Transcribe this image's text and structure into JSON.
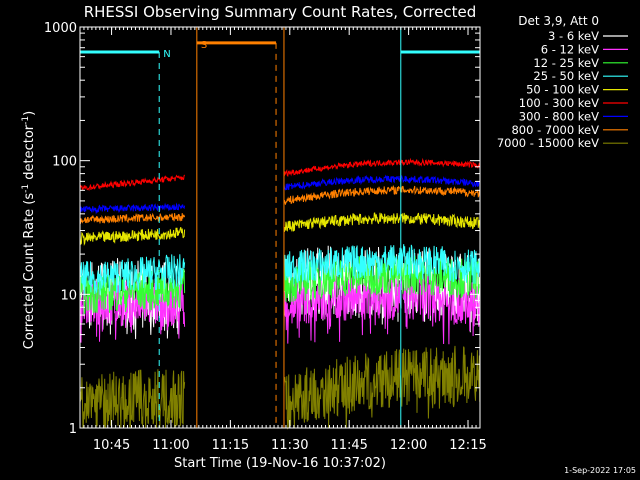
{
  "chart_data": {
    "type": "line",
    "title": "RHESSI Observing Summary Count Rates, Corrected",
    "xlabel": "Start Time (19-Nov-16 10:37:02)",
    "ylabel_main": "Corrected Count Rate (s",
    "ylabel_sup1": "-1",
    "ylabel_mid": " detector",
    "ylabel_sup2": "-1",
    "ylabel_end": ")",
    "yscale": "log",
    "ylim": [
      1,
      1000
    ],
    "x_units": "minutes after 10:37:02",
    "xlim": [
      0,
      101
    ],
    "x_ticks": [
      {
        "x": 7.97,
        "label": "10:45"
      },
      {
        "x": 22.97,
        "label": "11:00"
      },
      {
        "x": 37.97,
        "label": "11:15"
      },
      {
        "x": 52.97,
        "label": "11:30"
      },
      {
        "x": 67.97,
        "label": "11:45"
      },
      {
        "x": 82.97,
        "label": "12:00"
      },
      {
        "x": 97.97,
        "label": "12:15"
      }
    ],
    "y_ticks": [
      {
        "y": 1,
        "label": "1"
      },
      {
        "y": 10,
        "label": "10"
      },
      {
        "y": 100,
        "label": "100"
      },
      {
        "y": 1000,
        "label": "1000"
      }
    ],
    "legend_header": "Det 3,9, Att 0",
    "legend_position": "right",
    "gap": [
      26.5,
      51.5
    ],
    "segments": [
      [
        0,
        26.5
      ],
      [
        51.5,
        101
      ]
    ],
    "series": [
      {
        "name": "3 - 6 keV",
        "color": "#ffffff",
        "levels": [
          [
            10.5,
            10
          ],
          [
            12,
            11
          ]
        ],
        "noise": 0.6,
        "spikes": true
      },
      {
        "name": "6 - 12 keV",
        "color": "#ff33ff",
        "levels": [
          [
            8.5,
            8.5
          ],
          [
            8.5,
            8.5
          ]
        ],
        "noise": 0.4,
        "spikes": true
      },
      {
        "name": "12 - 25 keV",
        "color": "#33ff33",
        "levels": [
          [
            10,
            11
          ],
          [
            12,
            13
          ]
        ],
        "noise": 0.35,
        "spikes": false
      },
      {
        "name": "25 - 50 keV",
        "color": "#33ffff",
        "levels": [
          [
            13,
            15
          ],
          [
            15.5,
            16
          ]
        ],
        "noise": 0.3,
        "spikes": false
      },
      {
        "name": "50 - 100 keV",
        "color": "#e6e600",
        "levels": [
          [
            26,
            29
          ],
          [
            32,
            34
          ]
        ],
        "noise": 0.1,
        "spikes": false
      },
      {
        "name": "100 - 300 keV",
        "color": "#ff0000",
        "levels": [
          [
            62,
            75
          ],
          [
            80,
            92
          ]
        ],
        "noise": 0.05,
        "spikes": false
      },
      {
        "name": "300 - 800 keV",
        "color": "#0000ff",
        "levels": [
          [
            43,
            45
          ],
          [
            63,
            67
          ]
        ],
        "noise": 0.06,
        "spikes": false
      },
      {
        "name": "800 - 7000 keV",
        "color": "#ff8000",
        "levels": [
          [
            36,
            38
          ],
          [
            50,
            57
          ]
        ],
        "noise": 0.07,
        "spikes": false
      },
      {
        "name": "7000 - 15000 keV",
        "color": "#808000",
        "levels": [
          [
            1.6,
            1.7
          ],
          [
            1.6,
            2.5
          ]
        ],
        "noise": 0.5,
        "spikes": true
      }
    ],
    "flags": [
      {
        "label": "N",
        "color": "#33ffff",
        "y": 650,
        "solid_x": [
          0,
          20
        ],
        "dash_x": 20,
        "label_x": 20
      },
      {
        "label": "",
        "color": "#33ffff",
        "y": 650,
        "solid_x": [
          81,
          101
        ],
        "dash_x": 101,
        "label_x": null
      },
      {
        "label": "S",
        "color": "#ff8000",
        "y": 760,
        "solid_x": [
          29.5,
          49.5
        ],
        "dash_x": 49.5,
        "label_x": 29.5
      }
    ],
    "vlines": [
      {
        "x": 0,
        "color": "#33ffff"
      },
      {
        "x": 29.5,
        "color": "#ff8000"
      },
      {
        "x": 51.5,
        "color": "#ff8000"
      },
      {
        "x": 81,
        "color": "#33ffff"
      }
    ],
    "timestamp": "1-Sep-2022 17:05"
  }
}
